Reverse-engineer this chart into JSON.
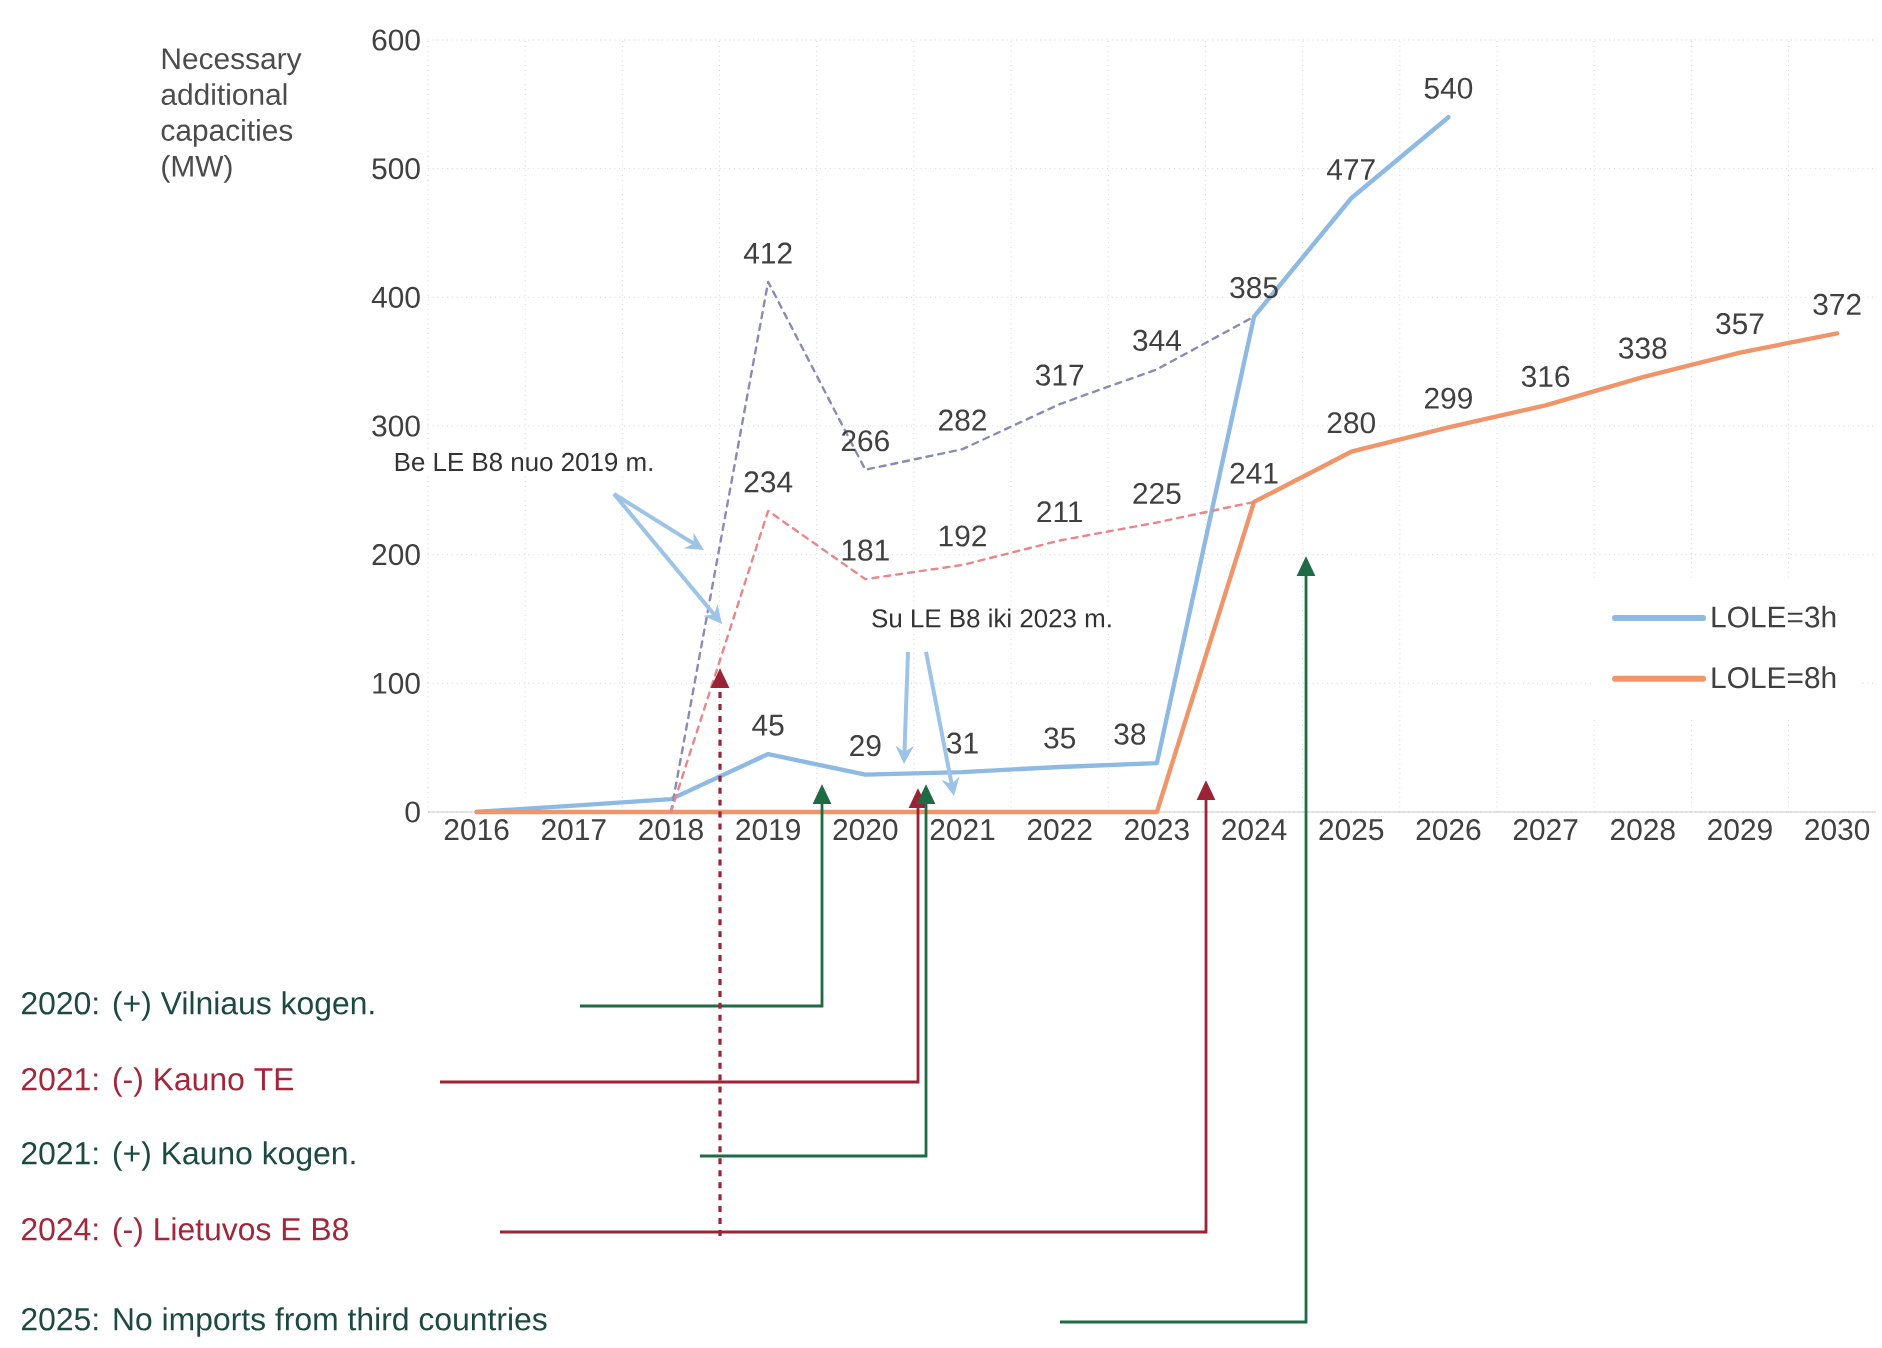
{
  "chart_data": {
    "type": "line",
    "ylabel": "Necessary additional capacities (MW)",
    "categories": [
      "2016",
      "2017",
      "2018",
      "2019",
      "2020",
      "2021",
      "2022",
      "2023",
      "2024",
      "2025",
      "2026",
      "2027",
      "2028",
      "2029",
      "2030"
    ],
    "ylim": [
      0,
      600
    ],
    "yticks": [
      0,
      100,
      200,
      300,
      400,
      500,
      600
    ],
    "grid": true,
    "legend": "right",
    "series": [
      {
        "name": "LOLE=3h",
        "color": "#8db9e3",
        "values": [
          0,
          5,
          10,
          45,
          29,
          31,
          35,
          38,
          385,
          477,
          540,
          null,
          null,
          null,
          null
        ],
        "value_labels": [
          null,
          null,
          null,
          "45",
          "29",
          "31",
          "35",
          "38",
          "385",
          "477",
          "540",
          null,
          null,
          null,
          null
        ]
      },
      {
        "name": "LOLE=8h",
        "color": "#f0956a",
        "values": [
          0,
          0,
          0,
          0,
          0,
          0,
          0,
          0,
          241,
          280,
          299,
          316,
          338,
          357,
          372
        ],
        "value_labels": [
          null,
          null,
          null,
          null,
          null,
          null,
          null,
          null,
          "241",
          "280",
          "299",
          "316",
          "338",
          "357",
          "372"
        ]
      },
      {
        "color": "#8a8ab8",
        "line_style": "dashed",
        "values": [
          null,
          null,
          0,
          412,
          266,
          282,
          317,
          344,
          385,
          null,
          null,
          null,
          null,
          null,
          null
        ],
        "value_labels": [
          null,
          null,
          null,
          "412",
          "266",
          "282",
          "317",
          "344",
          null,
          null,
          null,
          null,
          null,
          null,
          null
        ]
      },
      {
        "color": "#e8868a",
        "line_style": "dashed",
        "values": [
          null,
          null,
          0,
          234,
          181,
          192,
          211,
          225,
          241,
          null,
          null,
          null,
          null,
          null,
          null
        ],
        "value_labels": [
          null,
          null,
          null,
          "234",
          "181",
          "192",
          "211",
          "225",
          null,
          null,
          null,
          null,
          null,
          null,
          null
        ]
      }
    ],
    "annotations": [
      "Be LE B8 nuo 2019 m.",
      "Su LE B8 iki 2023 m.",
      "2020: (+) Vilniaus kogen.",
      "2021: (-) Kauno TE",
      "2021: (+) Kauno kogen.",
      "2024: (-) Lietuvos E B8",
      "2025: No imports from third countries"
    ]
  }
}
